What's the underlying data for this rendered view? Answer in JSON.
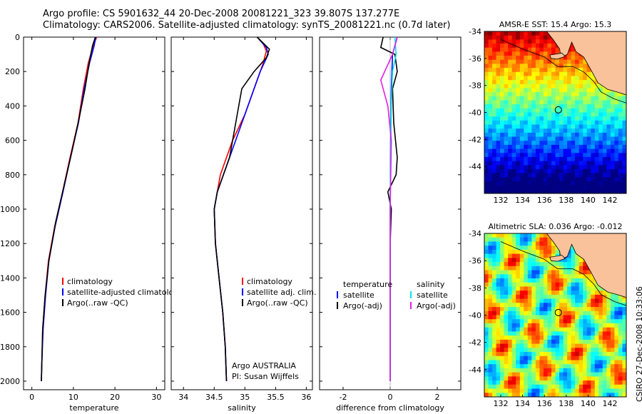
{
  "header": {
    "line1": "Argo profile: CS 5901632_44 20-Dec-2008 20081221_323 39.807S 137.277E",
    "line2": "Climatology: CARS2006. Satellite-adjusted climatology: synTS_20081221.nc (0.7d later)"
  },
  "stamp": "CSIRO 27-Dec-2008 10:33:06",
  "colors": {
    "climatology": "#ff0000",
    "satellite": "#0000ff",
    "argo": "#000000",
    "sal_satellite": "#00e5e5",
    "sal_argo": "#e020e0",
    "land": "#f9c29a",
    "coast": "#000000"
  },
  "chart_data": [
    {
      "type": "line",
      "panel": "temperature",
      "xlabel": "temperature",
      "xlim": [
        -2,
        32
      ],
      "ylim": [
        2050,
        0
      ],
      "xticks": [
        0,
        10,
        20,
        30
      ],
      "yticks": [
        0,
        200,
        400,
        600,
        800,
        1000,
        1200,
        1400,
        1600,
        1800,
        2000
      ],
      "legend": [
        "climatology",
        "satellite-adjusted climatology",
        "Argo(..raw -QC)"
      ],
      "series": [
        {
          "name": "climatology",
          "color": "#ff0000",
          "points": [
            [
              15.6,
              0
            ],
            [
              14.8,
              50
            ],
            [
              13.6,
              150
            ],
            [
              12.4,
              300
            ],
            [
              11.1,
              500
            ],
            [
              9.2,
              700
            ],
            [
              7.4,
              900
            ],
            [
              5.5,
              1100
            ],
            [
              4.0,
              1300
            ],
            [
              3.2,
              1500
            ],
            [
              2.6,
              1700
            ],
            [
              2.4,
              1900
            ],
            [
              2.3,
              2000
            ]
          ]
        },
        {
          "name": "satellite",
          "color": "#0000ff",
          "points": [
            [
              15.4,
              0
            ],
            [
              15.0,
              50
            ],
            [
              13.9,
              150
            ],
            [
              12.6,
              300
            ],
            [
              11.2,
              500
            ],
            [
              9.3,
              700
            ],
            [
              7.5,
              900
            ],
            [
              5.6,
              1100
            ],
            [
              4.1,
              1300
            ],
            [
              3.3,
              1500
            ],
            [
              2.7,
              1700
            ],
            [
              2.4,
              1900
            ],
            [
              2.3,
              2000
            ]
          ]
        },
        {
          "name": "Argo",
          "color": "#000000",
          "points": [
            [
              15.3,
              0
            ],
            [
              14.6,
              50
            ],
            [
              13.8,
              150
            ],
            [
              12.8,
              300
            ],
            [
              11.3,
              480
            ],
            [
              9.5,
              680
            ],
            [
              7.6,
              880
            ],
            [
              5.7,
              1080
            ],
            [
              4.1,
              1300
            ],
            [
              3.2,
              1500
            ],
            [
              2.6,
              1700
            ],
            [
              2.4,
              1900
            ],
            [
              2.3,
              2000
            ]
          ]
        }
      ]
    },
    {
      "type": "line",
      "panel": "salinity",
      "xlabel": "salinity",
      "xlim": [
        33.8,
        36.1
      ],
      "ylim": [
        2050,
        0
      ],
      "xticks": [
        34,
        34.5,
        35,
        35.5,
        36
      ],
      "legend": [
        "climatology",
        "satellite adj. clim.",
        "Argo(..raw -QC)"
      ],
      "annotation": [
        "Argo AUSTRALIA",
        "PI: Susan Wijffels"
      ],
      "series": [
        {
          "name": "climatology",
          "color": "#ff0000",
          "points": [
            [
              35.2,
              0
            ],
            [
              35.3,
              40
            ],
            [
              35.35,
              80
            ],
            [
              35.3,
              150
            ],
            [
              35.15,
              300
            ],
            [
              35.0,
              450
            ],
            [
              34.8,
              600
            ],
            [
              34.6,
              800
            ],
            [
              34.5,
              1000
            ],
            [
              34.52,
              1200
            ],
            [
              34.58,
              1400
            ],
            [
              34.64,
              1600
            ],
            [
              34.68,
              1800
            ],
            [
              34.7,
              2000
            ]
          ]
        },
        {
          "name": "satellite",
          "color": "#0000ff",
          "points": [
            [
              35.2,
              0
            ],
            [
              35.35,
              60
            ],
            [
              35.38,
              100
            ],
            [
              35.25,
              200
            ],
            [
              35.1,
              350
            ],
            [
              34.95,
              500
            ],
            [
              34.75,
              700
            ],
            [
              34.55,
              900
            ],
            [
              34.5,
              1000
            ],
            [
              34.52,
              1200
            ],
            [
              34.58,
              1400
            ],
            [
              34.64,
              1600
            ],
            [
              34.68,
              1800
            ],
            [
              34.7,
              2000
            ]
          ]
        },
        {
          "name": "Argo",
          "color": "#000000",
          "points": [
            [
              35.2,
              0
            ],
            [
              35.4,
              70
            ],
            [
              35.35,
              120
            ],
            [
              35.15,
              200
            ],
            [
              34.95,
              300
            ],
            [
              34.9,
              400
            ],
            [
              34.85,
              500
            ],
            [
              34.75,
              700
            ],
            [
              34.55,
              900
            ],
            [
              34.5,
              1000
            ],
            [
              34.52,
              1200
            ],
            [
              34.58,
              1400
            ],
            [
              34.64,
              1600
            ],
            [
              34.68,
              1800
            ],
            [
              34.7,
              2000
            ]
          ]
        }
      ]
    },
    {
      "type": "line",
      "panel": "difference",
      "xlabel": "difference from climatology",
      "xlim": [
        -3,
        3
      ],
      "ylim": [
        2050,
        0
      ],
      "xticks": [
        -2,
        0,
        2
      ],
      "legend_left": {
        "header": "temperature",
        "items": [
          "satellite",
          "Argo(-adj)"
        ]
      },
      "legend_right": {
        "header": "salinity",
        "items": [
          "satellite",
          "Argo(-adj)"
        ]
      },
      "series": [
        {
          "name": "temp satellite",
          "color": "#0000ff",
          "points": [
            [
              0.3,
              0
            ],
            [
              0.1,
              100
            ],
            [
              0.05,
              300
            ],
            [
              0.02,
              600
            ],
            [
              0,
              1000
            ],
            [
              0,
              1500
            ],
            [
              0,
              2000
            ]
          ]
        },
        {
          "name": "temp Argo(-adj)",
          "color": "#000000",
          "points": [
            [
              -0.3,
              0
            ],
            [
              -0.4,
              60
            ],
            [
              0.2,
              100
            ],
            [
              0.3,
              200
            ],
            [
              0.1,
              300
            ],
            [
              0.15,
              500
            ],
            [
              0.3,
              700
            ],
            [
              0.25,
              800
            ],
            [
              -0.1,
              900
            ],
            [
              0.05,
              1000
            ],
            [
              0,
              1200
            ],
            [
              0,
              2000
            ]
          ]
        },
        {
          "name": "sal satellite",
          "color": "#00e5e5",
          "points": [
            [
              0.2,
              0
            ],
            [
              0.25,
              100
            ],
            [
              0.1,
              200
            ],
            [
              0.05,
              400
            ],
            [
              0.02,
              700
            ],
            [
              0,
              1000
            ],
            [
              0,
              2000
            ]
          ]
        },
        {
          "name": "sal Argo(-adj)",
          "color": "#e020e0",
          "points": [
            [
              0.3,
              0
            ],
            [
              0.1,
              100
            ],
            [
              -0.4,
              250
            ],
            [
              -0.1,
              400
            ],
            [
              0.05,
              600
            ],
            [
              0,
              1000
            ],
            [
              0,
              2000
            ]
          ]
        }
      ]
    },
    {
      "type": "heatmap",
      "panel": "sst-map",
      "title": "AMSR-E SST: 15.4 Argo: 15.3",
      "xticks": [
        132,
        134,
        136,
        138,
        140,
        142
      ],
      "yticks": [
        -34,
        -36,
        -38,
        -40,
        -42,
        -44
      ],
      "xlim": [
        130.5,
        143.5
      ],
      "ylim": [
        -46,
        -34
      ],
      "marker": {
        "lon": 137.277,
        "lat": -39.807
      }
    },
    {
      "type": "heatmap",
      "panel": "sla-map",
      "title": "Altimetric SLA: 0.036 Argo: -0.012",
      "xticks": [
        132,
        134,
        136,
        138,
        140,
        142
      ],
      "yticks": [
        -34,
        -36,
        -38,
        -40,
        -42,
        -44
      ],
      "xlim": [
        130.5,
        143.5
      ],
      "ylim": [
        -46,
        -34
      ],
      "marker": {
        "lon": 137.277,
        "lat": -39.807
      }
    }
  ]
}
